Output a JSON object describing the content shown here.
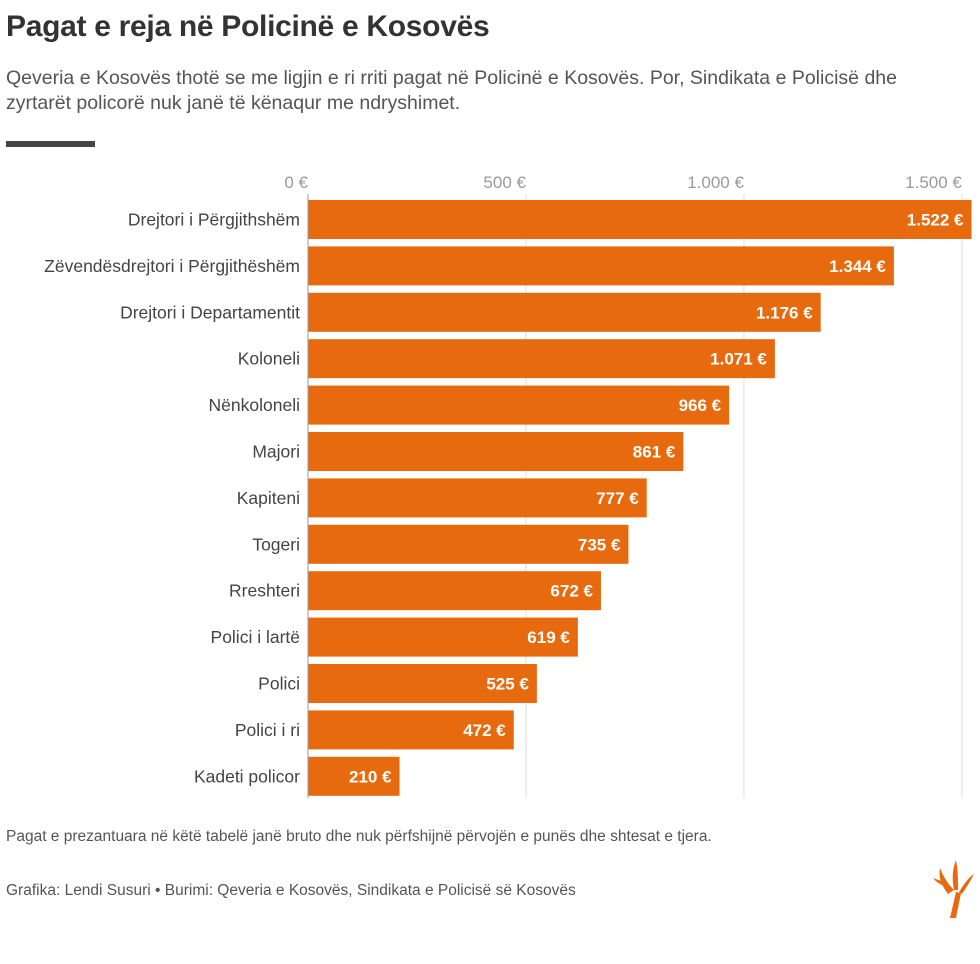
{
  "header": {
    "title": "Pagat e reja në Policinë e Kosovës",
    "subtitle": "Qeveria e Kosovës thotë se me ligjin e ri rriti pagat në Policinë e Kosovës. Por, Sindikata e Policisë dhe zyrtarët policorë nuk janë të kënaqur me ndryshimet."
  },
  "footer": {
    "note": "Pagat e prezantuara në këtë tabelë janë bruto dhe nuk përfshijnë përvojën e punës dhe shtesat e tjera.",
    "credits": "Grafika: Lendi Susuri • Burimi: Qeveria e Kosovës, Sindikata e Policisë së Kosovës",
    "logo_icon": "rferl-torch-logo-icon"
  },
  "colors": {
    "bar": "#E86A0E",
    "grid": "#dddddd",
    "tick_text": "#9a9a9a",
    "label_text": "#444444",
    "value_text": "#ffffff"
  },
  "chart_data": {
    "type": "bar",
    "orientation": "horizontal",
    "title": "Pagat e reja në Policinë e Kosovës",
    "categories": [
      "Drejtori i Përgjithshëm",
      "Zëvendësdrejtori i Përgjithëshëm",
      "Drejtori i Departamentit",
      "Koloneli",
      "Nënkoloneli",
      "Majori",
      "Kapiteni",
      "Togeri",
      "Rreshteri",
      "Polici i lartë",
      "Polici",
      "Polici i ri",
      "Kadeti policor"
    ],
    "values": [
      1522,
      1344,
      1176,
      1071,
      966,
      861,
      777,
      735,
      672,
      619,
      525,
      472,
      210
    ],
    "value_labels": [
      "1.522 €",
      "1.344 €",
      "1.176 €",
      "1.071 €",
      "966 €",
      "861 €",
      "777 €",
      "735 €",
      "672 €",
      "619 €",
      "525 €",
      "472 €",
      "210 €"
    ],
    "xticks": [
      0,
      500,
      1000,
      1500
    ],
    "xtick_labels": [
      "0 €",
      "500 €",
      "1.000 €",
      "1.500 €"
    ],
    "xlim": [
      0,
      1530
    ],
    "axis_position": "top",
    "grid": true,
    "legend": "none",
    "xlabel": "",
    "ylabel": ""
  }
}
